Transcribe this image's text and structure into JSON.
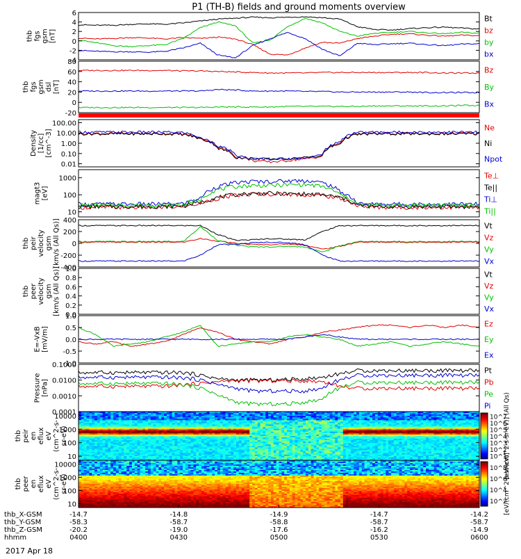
{
  "title": "P1 (TH-B) fields and ground moments overview",
  "date_label": "2017 Apr 18",
  "colors": {
    "black": "#000000",
    "red": "#e00000",
    "green": "#00c000",
    "blue": "#0000d0"
  },
  "chart_data": [
    {
      "type": "line",
      "ylabel": [
        "thb",
        "fgs",
        "gsm",
        "[nT]"
      ],
      "yticks": [
        "6",
        "4",
        "2",
        "0",
        "-2",
        "-4"
      ],
      "legend": [
        {
          "name": "Bt",
          "color": "black"
        },
        {
          "name": "bz",
          "color": "red"
        },
        {
          "name": "by",
          "color": "green"
        },
        {
          "name": "bx",
          "color": "blue"
        }
      ],
      "series": [
        {
          "name": "Bt",
          "color": "black",
          "values": [
            3.4,
            3.3,
            3.3,
            3.5,
            3.6,
            3.5,
            3.8,
            4.2,
            4.6,
            4.8,
            5.0,
            4.9,
            5.0,
            5.1,
            4.9,
            4.6,
            3.0,
            2.4,
            2.3,
            2.6,
            2.8,
            2.9,
            2.7,
            2.5
          ]
        },
        {
          "name": "bz",
          "color": "red",
          "values": [
            0.6,
            0.4,
            0.5,
            0.7,
            0.6,
            0.4,
            0.7,
            0.5,
            0.8,
            0.4,
            -0.8,
            -2.8,
            -3.0,
            -1.5,
            -0.3,
            -0.5,
            0.5,
            1.0,
            1.4,
            1.5,
            1.2,
            1.0,
            1.2,
            1.1
          ]
        },
        {
          "name": "by",
          "color": "green",
          "values": [
            0.2,
            -0.4,
            -1.0,
            -1.2,
            -1.0,
            -0.8,
            0.5,
            2.8,
            4.0,
            3.2,
            -0.5,
            0.2,
            3.0,
            4.8,
            3.8,
            2.0,
            1.0,
            1.6,
            1.8,
            2.0,
            1.7,
            1.5,
            1.8,
            1.6
          ]
        },
        {
          "name": "bx",
          "color": "blue",
          "values": [
            -2.0,
            -2.2,
            -2.3,
            -2.3,
            -2.4,
            -2.2,
            -1.5,
            -0.5,
            -3.0,
            -3.6,
            -1.0,
            0.5,
            1.8,
            0.5,
            -1.8,
            -3.2,
            -0.5,
            -0.8,
            -0.6,
            -0.5,
            -0.8,
            -1.0,
            -0.7,
            -0.6
          ]
        }
      ]
    },
    {
      "type": "line",
      "ylabel": [
        "thb",
        "fgs",
        "gsm",
        "dsl",
        "[nT]"
      ],
      "yticks": [
        "80",
        "60",
        "40",
        "20",
        "0",
        "-20"
      ],
      "legend": [
        {
          "name": "Bz",
          "color": "red"
        },
        {
          "name": "By",
          "color": "green"
        },
        {
          "name": "Bx",
          "color": "blue"
        }
      ],
      "series": [
        {
          "name": "Bz",
          "color": "red",
          "values": [
            62,
            62,
            62,
            62,
            62,
            62,
            61,
            61,
            60,
            59,
            58,
            57,
            57,
            57,
            58,
            58,
            58,
            58,
            58,
            58,
            58,
            57,
            57,
            57
          ]
        },
        {
          "name": "By",
          "color": "green",
          "values": [
            -10,
            -10,
            -10,
            -10,
            -10,
            -10,
            -10,
            -10,
            -9,
            -9,
            -9,
            -9,
            -8,
            -8,
            -8,
            -8,
            -8,
            -7,
            -7,
            -7,
            -7,
            -7,
            -6,
            -6
          ]
        },
        {
          "name": "Bx",
          "color": "blue",
          "values": [
            22,
            22,
            22,
            22,
            22,
            22,
            22,
            22,
            25,
            24,
            22,
            22,
            22,
            21,
            21,
            20,
            20,
            20,
            20,
            20,
            19,
            19,
            19,
            19
          ]
        }
      ]
    },
    {
      "type": "line",
      "ylabel": [
        "Density",
        "[1/cc]",
        "[cm^-3]"
      ],
      "yticks": [
        "100.00",
        "10.00",
        "1.00",
        "0.10",
        "0.01"
      ],
      "legend": [
        {
          "name": "Ne",
          "color": "red"
        },
        {
          "name": "Ni",
          "color": "black"
        },
        {
          "name": "Npot",
          "color": "blue"
        }
      ],
      "series": [
        {
          "name": "Ne",
          "color": "red",
          "values": [
            9,
            9,
            9,
            9,
            9,
            9,
            8,
            3,
            0.4,
            0.05,
            0.02,
            0.015,
            0.02,
            0.03,
            0.05,
            1.0,
            8,
            9,
            9,
            9,
            9,
            9,
            9,
            9
          ]
        },
        {
          "name": "Ni",
          "color": "black",
          "values": [
            8,
            8,
            8,
            8,
            8,
            8,
            7,
            2.5,
            0.3,
            0.04,
            0.03,
            0.03,
            0.03,
            0.04,
            0.06,
            0.8,
            7,
            8,
            8,
            8,
            8,
            8,
            8,
            8
          ]
        },
        {
          "name": "Npot",
          "color": "blue",
          "values": [
            12,
            12,
            12,
            12,
            12,
            12,
            11,
            3,
            0.5,
            0.06,
            0.03,
            0.03,
            0.03,
            0.04,
            0.07,
            1.2,
            12,
            12,
            12,
            12,
            12,
            12,
            12,
            12
          ]
        }
      ]
    },
    {
      "type": "line",
      "ylabel": [
        "magt3",
        "[eV]"
      ],
      "yticks": [
        "1000",
        "100",
        "10"
      ],
      "legend": [
        {
          "name": "Te⊥",
          "color": "red"
        },
        {
          "name": "Te||",
          "color": "black"
        },
        {
          "name": "Ti⊥",
          "color": "blue"
        },
        {
          "name": "Ti||",
          "color": "green"
        }
      ],
      "series": [
        {
          "name": "Te⊥",
          "color": "red",
          "values": [
            18,
            18,
            18,
            18,
            18,
            18,
            20,
            30,
            60,
            90,
            110,
            110,
            105,
            100,
            90,
            60,
            22,
            18,
            18,
            18,
            18,
            18,
            18,
            18
          ]
        },
        {
          "name": "Te||",
          "color": "black",
          "values": [
            20,
            20,
            20,
            20,
            20,
            20,
            22,
            35,
            70,
            100,
            120,
            120,
            115,
            110,
            100,
            70,
            24,
            20,
            20,
            20,
            20,
            20,
            20,
            20
          ]
        },
        {
          "name": "Ti⊥",
          "color": "blue",
          "values": [
            28,
            28,
            28,
            28,
            28,
            28,
            30,
            60,
            300,
            500,
            600,
            600,
            650,
            700,
            500,
            150,
            30,
            28,
            28,
            28,
            28,
            28,
            28,
            28
          ]
        },
        {
          "name": "Ti||",
          "color": "green",
          "values": [
            25,
            25,
            25,
            25,
            25,
            25,
            27,
            50,
            200,
            300,
            350,
            350,
            380,
            400,
            300,
            100,
            28,
            25,
            25,
            25,
            25,
            25,
            25,
            25
          ]
        }
      ]
    },
    {
      "type": "line",
      "ylabel": [
        "thb",
        "peir",
        "velocity",
        "gsm",
        "[km/s (All Qs)]"
      ],
      "yticks": [
        "400",
        "200",
        "0",
        "-200",
        "-400"
      ],
      "legend": [
        {
          "name": "Vt",
          "color": "black"
        },
        {
          "name": "Vz",
          "color": "red"
        },
        {
          "name": "Vy",
          "color": "green"
        },
        {
          "name": "Vx",
          "color": "blue"
        }
      ],
      "series": [
        {
          "name": "Vt",
          "color": "black",
          "values": [
            300,
            300,
            300,
            300,
            300,
            300,
            300,
            300,
            150,
            50,
            60,
            80,
            70,
            60,
            200,
            300,
            300,
            300,
            300,
            300,
            300,
            300,
            300,
            300
          ]
        },
        {
          "name": "Vz",
          "color": "red",
          "values": [
            20,
            20,
            20,
            20,
            20,
            20,
            20,
            80,
            40,
            0,
            -20,
            -20,
            -10,
            -30,
            -100,
            -50,
            20,
            20,
            20,
            20,
            20,
            20,
            20,
            20
          ]
        },
        {
          "name": "Vy",
          "color": "green",
          "values": [
            30,
            30,
            30,
            30,
            30,
            30,
            30,
            280,
            50,
            -30,
            -60,
            -60,
            -50,
            -60,
            -150,
            -40,
            30,
            30,
            30,
            30,
            30,
            30,
            30,
            30
          ]
        },
        {
          "name": "Vx",
          "color": "blue",
          "values": [
            -300,
            -300,
            -300,
            -300,
            -300,
            -300,
            -300,
            -200,
            -20,
            -20,
            10,
            20,
            10,
            -20,
            -200,
            -300,
            -300,
            -300,
            -300,
            -300,
            -300,
            -300,
            -300,
            -300
          ]
        }
      ]
    },
    {
      "type": "line",
      "ylabel": [
        "thb",
        "peer",
        "velocity",
        "gsm",
        "[km/s (All Qs)]"
      ],
      "yticks": [
        "1.0",
        "0.8",
        "0.6",
        "0.4",
        "0.2",
        "0.0"
      ],
      "legend": [
        {
          "name": "Vt",
          "color": "black"
        },
        {
          "name": "Vz",
          "color": "red"
        },
        {
          "name": "Vy",
          "color": "green"
        },
        {
          "name": "Vx",
          "color": "blue"
        }
      ],
      "series": []
    },
    {
      "type": "line",
      "ylabel": [
        "E=-VxB",
        "[mV/m]"
      ],
      "yticks": [
        "1.0",
        "0.5",
        "0.0",
        "-0.5",
        "-1.0"
      ],
      "legend": [
        {
          "name": "Ez",
          "color": "red"
        },
        {
          "name": "Ey",
          "color": "green"
        },
        {
          "name": "Ex",
          "color": "blue"
        }
      ],
      "series": [
        {
          "name": "Ez",
          "color": "red",
          "values": [
            -0.1,
            -0.2,
            -0.1,
            -0.3,
            -0.2,
            -0.1,
            0.2,
            0.5,
            0.3,
            0.0,
            -0.1,
            -0.2,
            0.0,
            0.1,
            0.3,
            0.4,
            0.5,
            0.6,
            0.6,
            0.5,
            0.6,
            0.5,
            0.6,
            0.5
          ]
        },
        {
          "name": "Ey",
          "color": "green",
          "values": [
            0.5,
            0.2,
            -0.3,
            -0.2,
            -0.1,
            0.1,
            0.3,
            0.6,
            -0.3,
            -0.2,
            -0.1,
            -0.1,
            0.1,
            0.2,
            0.1,
            0.0,
            -0.3,
            -0.2,
            -0.1,
            -0.3,
            -0.2,
            -0.1,
            -0.2,
            -0.3
          ]
        },
        {
          "name": "Ex",
          "color": "blue",
          "values": [
            0.0,
            0.0,
            0.0,
            0.0,
            0.0,
            0.0,
            0.0,
            0.0,
            0.0,
            0.0,
            0.0,
            0.0,
            0.0,
            0.1,
            0.2,
            0.1,
            0.0,
            0.0,
            0.0,
            0.0,
            0.0,
            0.0,
            0.0,
            0.0
          ]
        }
      ]
    },
    {
      "type": "line",
      "ylabel": [
        "Pressure",
        "[nPa]"
      ],
      "yticks": [
        "0.1000",
        "0.0100",
        "0.0010",
        "0.0001"
      ],
      "legend": [
        {
          "name": "Pt",
          "color": "black"
        },
        {
          "name": "Pb",
          "color": "red"
        },
        {
          "name": "Pe",
          "color": "green"
        },
        {
          "name": "Pi",
          "color": "blue"
        }
      ],
      "series": [
        {
          "name": "Pt",
          "color": "black",
          "values": [
            0.03,
            0.03,
            0.03,
            0.03,
            0.03,
            0.03,
            0.03,
            0.02,
            0.012,
            0.01,
            0.01,
            0.01,
            0.011,
            0.012,
            0.015,
            0.025,
            0.04,
            0.04,
            0.04,
            0.04,
            0.04,
            0.04,
            0.04,
            0.04
          ]
        },
        {
          "name": "Pb",
          "color": "red",
          "values": [
            0.004,
            0.004,
            0.004,
            0.004,
            0.004,
            0.004,
            0.005,
            0.006,
            0.008,
            0.009,
            0.009,
            0.009,
            0.009,
            0.009,
            0.008,
            0.004,
            0.003,
            0.003,
            0.003,
            0.003,
            0.003,
            0.003,
            0.003,
            0.003
          ]
        },
        {
          "name": "Pe",
          "color": "green",
          "values": [
            0.006,
            0.006,
            0.006,
            0.006,
            0.006,
            0.006,
            0.005,
            0.003,
            0.001,
            0.0004,
            0.0003,
            0.0003,
            0.0003,
            0.0004,
            0.0006,
            0.003,
            0.007,
            0.007,
            0.007,
            0.007,
            0.007,
            0.007,
            0.007,
            0.007
          ]
        },
        {
          "name": "Pi",
          "color": "blue",
          "values": [
            0.015,
            0.015,
            0.015,
            0.015,
            0.015,
            0.015,
            0.014,
            0.01,
            0.005,
            0.003,
            0.002,
            0.002,
            0.002,
            0.002,
            0.003,
            0.01,
            0.02,
            0.02,
            0.02,
            0.02,
            0.02,
            0.02,
            0.02,
            0.02
          ]
        }
      ]
    },
    {
      "type": "heatmap",
      "ylabel": [
        "thb",
        "peir",
        "en",
        "eflux",
        "eV",
        "(cm^2-s-",
        "sr-eV)"
      ],
      "yticks": [
        "10000",
        "1000",
        "100",
        "10"
      ],
      "colorbar_ticks": [
        "10^7",
        "10^6",
        "10^5",
        "10^4",
        "10^3",
        "10^2",
        "10^1"
      ],
      "colorbar_label": "[eV/(cm^2-s-sr-eV)] (All Qs)"
    },
    {
      "type": "heatmap",
      "ylabel": [
        "thb",
        "peer",
        "en",
        "eflux",
        "eV",
        "(cm^2-s-",
        "sr-eV)"
      ],
      "yticks": [
        "10000",
        "1000",
        "100",
        "10"
      ],
      "colorbar_ticks": [
        "10^8",
        "10^6",
        "10^4",
        "10^2"
      ],
      "colorbar_label": "[eV/(cm^2-s-sr-eV)]"
    }
  ],
  "time_axis": {
    "row_labels": [
      "thb_X-GSM",
      "thb_Y-GSM",
      "thb_Z-GSM",
      "hhmm"
    ],
    "columns": [
      {
        "x": "-14.7",
        "y": "-58.3",
        "z": "-20.2",
        "t": "0400"
      },
      {
        "x": "-14.8",
        "y": "-58.7",
        "z": "-19.0",
        "t": "0430"
      },
      {
        "x": "-14.9",
        "y": "-58.8",
        "z": "-17.6",
        "t": "0500"
      },
      {
        "x": "-14.7",
        "y": "-58.7",
        "z": "-16.2",
        "t": "0530"
      },
      {
        "x": "-14.2",
        "y": "-58.7",
        "z": "-14.9",
        "t": "0600"
      }
    ]
  }
}
